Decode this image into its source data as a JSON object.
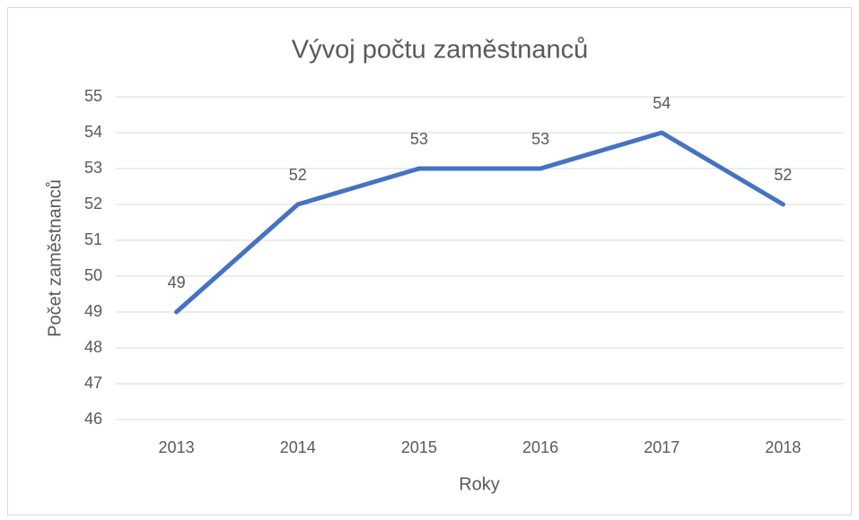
{
  "chart_data": {
    "type": "line",
    "title": "Vývoj počtu zaměstnanců",
    "x_label": "Roky",
    "y_label": "Počet zaměstnanců",
    "categories": [
      "2013",
      "2014",
      "2015",
      "2016",
      "2017",
      "2018"
    ],
    "series": [
      {
        "name": "Počet zaměstnanců",
        "color": "#4472c4",
        "values": [
          49,
          52,
          53,
          53,
          54,
          52
        ]
      }
    ],
    "ylim": [
      46,
      55
    ],
    "yticks": [
      46,
      47,
      48,
      49,
      50,
      51,
      52,
      53,
      54,
      55
    ],
    "grid": true,
    "legend": false,
    "data_labels": true
  }
}
